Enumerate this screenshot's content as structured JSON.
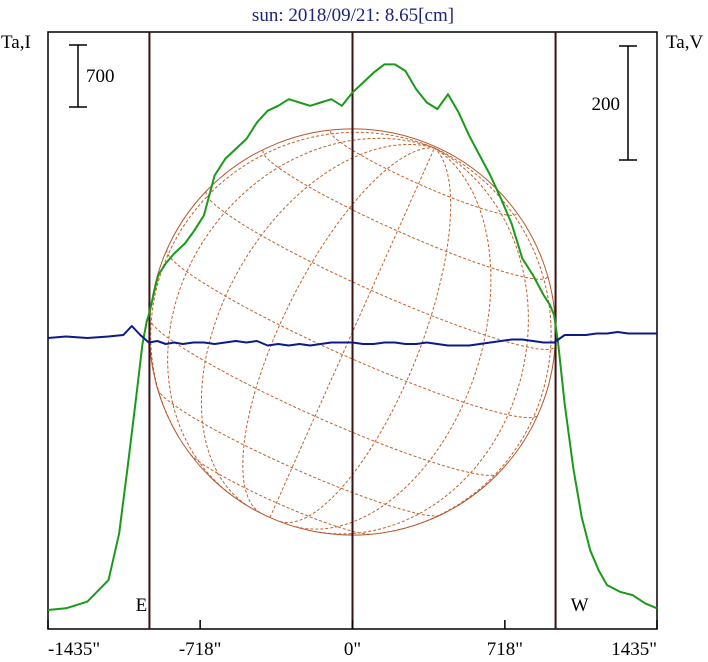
{
  "chart_data": {
    "type": "line",
    "title": "sun: 2018/09/21: 8.65[cm]",
    "ylabel_left": "Ta,I",
    "ylabel_right": "Ta,V",
    "xlim": [
      -1435,
      1435
    ],
    "x_ticks": [
      -1435,
      -718,
      0,
      718,
      1435
    ],
    "x_tick_labels": [
      "-1435\"",
      "-718\"",
      "0\"",
      "718\"",
      "1435\""
    ],
    "limb_markers": [
      {
        "label": "E",
        "x": -957
      },
      {
        "label": "W",
        "x": 957
      }
    ],
    "scale_bars": [
      {
        "axis": "left",
        "value": "700"
      },
      {
        "axis": "right",
        "value": "200"
      }
    ],
    "grid": false,
    "series": [
      {
        "name": "I",
        "color": "#1a9a1a",
        "x": [
          -1435,
          -1350,
          -1250,
          -1150,
          -1100,
          -1060,
          -1020,
          -990,
          -970,
          -960,
          -950,
          -935,
          -915,
          -880,
          -840,
          -790,
          -750,
          -700,
          -650,
          -600,
          -550,
          -500,
          -450,
          -400,
          -350,
          -300,
          -250,
          -200,
          -150,
          -100,
          -50,
          0,
          50,
          100,
          150,
          200,
          250,
          300,
          350,
          400,
          450,
          500,
          550,
          600,
          650,
          700,
          750,
          800,
          850,
          900,
          930,
          950,
          970,
          1000,
          1040,
          1080,
          1120,
          1160,
          1200,
          1260,
          1320,
          1380,
          1435
        ],
        "values": [
          0,
          5,
          25,
          90,
          230,
          430,
          640,
          800,
          870,
          890,
          915,
          960,
          1010,
          1045,
          1075,
          1105,
          1140,
          1190,
          1310,
          1360,
          1390,
          1420,
          1470,
          1505,
          1520,
          1540,
          1530,
          1520,
          1530,
          1540,
          1520,
          1560,
          1590,
          1620,
          1645,
          1645,
          1625,
          1570,
          1530,
          1510,
          1555,
          1500,
          1430,
          1370,
          1310,
          1240,
          1165,
          1060,
          1010,
          950,
          920,
          890,
          800,
          620,
          430,
          280,
          180,
          120,
          75,
          55,
          45,
          20,
          5
        ]
      },
      {
        "name": "V",
        "color": "#0d1a8a",
        "x": [
          -1435,
          -1350,
          -1250,
          -1150,
          -1080,
          -1040,
          -1000,
          -960,
          -920,
          -880,
          -840,
          -800,
          -750,
          -700,
          -650,
          -600,
          -550,
          -500,
          -450,
          -400,
          -350,
          -300,
          -250,
          -200,
          -150,
          -100,
          -50,
          0,
          50,
          100,
          150,
          200,
          250,
          300,
          350,
          400,
          450,
          500,
          550,
          600,
          650,
          700,
          750,
          800,
          850,
          900,
          950,
          1000,
          1050,
          1100,
          1150,
          1200,
          1250,
          1300,
          1350,
          1435
        ],
        "values": [
          0,
          1,
          0,
          1,
          2,
          8,
          2,
          -3,
          -2,
          -4,
          -3,
          -4,
          -3,
          -3,
          -4,
          -3,
          -2,
          -3,
          -2,
          -5,
          -4,
          -5,
          -4,
          -5,
          -4,
          -3,
          -3,
          -3,
          -4,
          -4,
          -3,
          -3,
          -4,
          -4,
          -3,
          -4,
          -5,
          -5,
          -5,
          -4,
          -3,
          -2,
          -1,
          -1,
          -2,
          -3,
          -3,
          2,
          2,
          2,
          3,
          3,
          4,
          3,
          3,
          3
        ]
      }
    ]
  }
}
